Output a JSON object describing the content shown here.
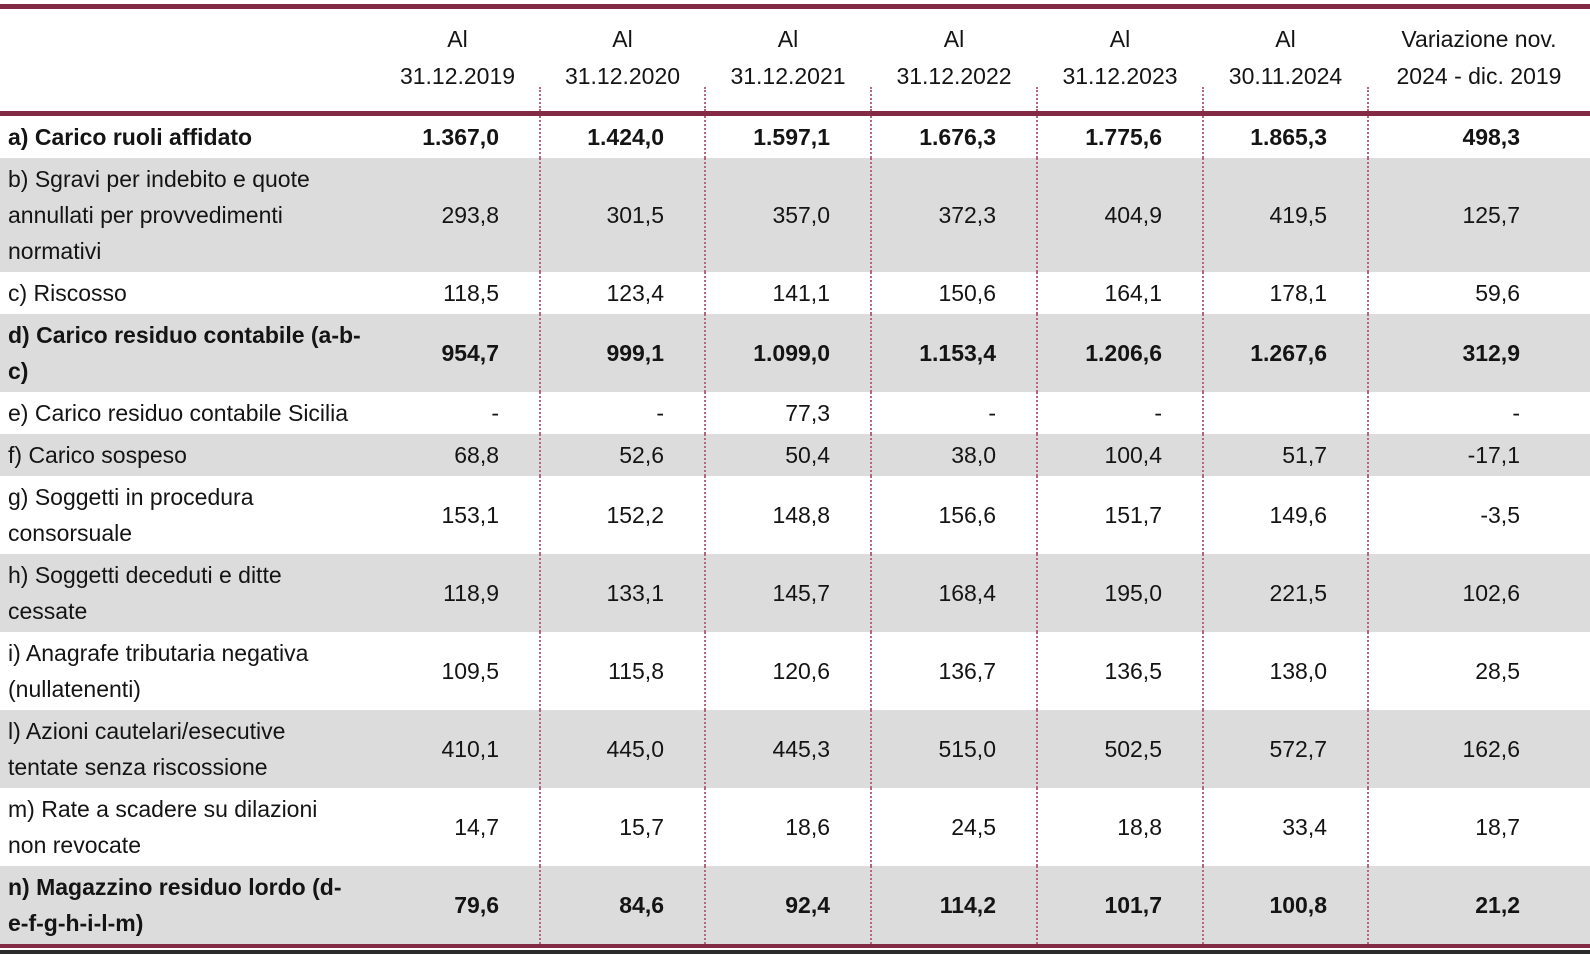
{
  "colors": {
    "accent_maroon": "#832B44",
    "column_divider_pink": "#B5687C",
    "row_shading_gray": "#DCDCDC"
  },
  "table": {
    "columns": [
      {
        "line1": "Al",
        "line2": "31.12.2019"
      },
      {
        "line1": "Al",
        "line2": "31.12.2020"
      },
      {
        "line1": "Al",
        "line2": "31.12.2021"
      },
      {
        "line1": "Al",
        "line2": "31.12.2022"
      },
      {
        "line1": "Al",
        "line2": "31.12.2023"
      },
      {
        "line1": "Al",
        "line2": "30.11.2024"
      },
      {
        "line1": "Variazione nov.",
        "line2": "2024 - dic. 2019"
      }
    ],
    "rows": [
      {
        "label": "a) Carico ruoli affidato",
        "values": [
          "1.367,0",
          "1.424,0",
          "1.597,1",
          "1.676,3",
          "1.775,6",
          "1.865,3",
          "498,3"
        ],
        "bold": true,
        "shaded": false
      },
      {
        "label": "b) Sgravi per indebito e quote annullati per provvedimenti normativi",
        "values": [
          "293,8",
          "301,5",
          "357,0",
          "372,3",
          "404,9",
          "419,5",
          "125,7"
        ],
        "bold": false,
        "shaded": true
      },
      {
        "label": "c) Riscosso",
        "values": [
          "118,5",
          "123,4",
          "141,1",
          "150,6",
          "164,1",
          "178,1",
          "59,6"
        ],
        "bold": false,
        "shaded": false
      },
      {
        "label": "d) Carico residuo contabile (a-b-c)",
        "values": [
          "954,7",
          "999,1",
          "1.099,0",
          "1.153,4",
          "1.206,6",
          "1.267,6",
          "312,9"
        ],
        "bold": true,
        "shaded": true
      },
      {
        "label": "e) Carico residuo contabile Sicilia",
        "values": [
          "-",
          "-",
          "77,3",
          "-",
          "-",
          "",
          "-"
        ],
        "bold": false,
        "shaded": false
      },
      {
        "label": "f) Carico sospeso",
        "values": [
          "68,8",
          "52,6",
          "50,4",
          "38,0",
          "100,4",
          "51,7",
          "-17,1"
        ],
        "bold": false,
        "shaded": true
      },
      {
        "label": "g) Soggetti in procedura consorsuale",
        "values": [
          "153,1",
          "152,2",
          "148,8",
          "156,6",
          "151,7",
          "149,6",
          "-3,5"
        ],
        "bold": false,
        "shaded": false
      },
      {
        "label": "h) Soggetti deceduti e ditte cessate",
        "values": [
          "118,9",
          "133,1",
          "145,7",
          "168,4",
          "195,0",
          "221,5",
          "102,6"
        ],
        "bold": false,
        "shaded": true
      },
      {
        "label": "i) Anagrafe tributaria negativa (nullatenenti)",
        "values": [
          "109,5",
          "115,8",
          "120,6",
          "136,7",
          "136,5",
          "138,0",
          "28,5"
        ],
        "bold": false,
        "shaded": false
      },
      {
        "label": "l) Azioni cautelari/esecutive tentate senza riscossione",
        "values": [
          "410,1",
          "445,0",
          "445,3",
          "515,0",
          "502,5",
          "572,7",
          "162,6"
        ],
        "bold": false,
        "shaded": true
      },
      {
        "label": "m) Rate a scadere su dilazioni non revocate",
        "values": [
          "14,7",
          "15,7",
          "18,6",
          "24,5",
          "18,8",
          "33,4",
          "18,7"
        ],
        "bold": false,
        "shaded": false
      },
      {
        "label": "n) Magazzino residuo lordo (d-e-f-g-h-i-l-m)",
        "values": [
          "79,6",
          "84,6",
          "92,4",
          "114,2",
          "101,7",
          "100,8",
          "21,2"
        ],
        "bold": true,
        "shaded": true
      }
    ]
  }
}
